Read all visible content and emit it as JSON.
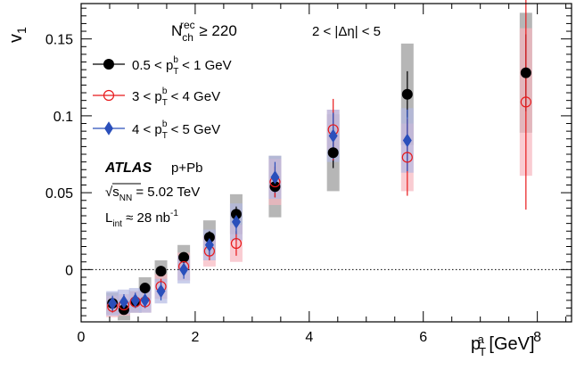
{
  "chart_data": {
    "type": "scatter",
    "xlabel": {
      "base": "p",
      "sub": "T",
      "sup": "a",
      "unit": " [GeV]"
    },
    "ylabel": {
      "base": "v",
      "sub": "1"
    },
    "xlim": [
      0,
      8.6
    ],
    "ylim": [
      -0.034,
      0.173
    ],
    "x_ticks": [
      0,
      2,
      4,
      6,
      8
    ],
    "y_ticks": [
      0,
      0.05,
      0.1,
      0.15
    ],
    "x_tick_labels": [
      "0",
      "2",
      "4",
      "6",
      "8"
    ],
    "y_tick_labels": [
      "0",
      "0.05",
      "0.1",
      "0.15"
    ],
    "reference_line_y": 0,
    "annotations": {
      "nch_base": "N",
      "nch_sub": "ch",
      "nch_sup": "rec",
      "nch_cond": " ≥ 220",
      "deta": "2 < |Δη| < 5",
      "atlas": "ATLAS",
      "system": "p+Pb",
      "energy_pre": "s",
      "energy_sub": "NN",
      "energy_val": " = 5.02 TeV",
      "lumi_base": "L",
      "lumi_sub": "int",
      "lumi_val": " ≈ 28 nb",
      "lumi_sup": "-1"
    },
    "series": [
      {
        "name": "0.5 < p_T^b < 1 GeV",
        "legend_pre": "0.5 < p",
        "legend_sub": "T",
        "legend_sup": "b",
        "legend_post": " < 1 GeV",
        "marker": "circle-filled",
        "color": "#000000",
        "syst_color": "#9e9e9e",
        "points": [
          {
            "x": 0.55,
            "y": -0.022,
            "stat": 0.003,
            "syst": 0.007
          },
          {
            "x": 0.75,
            "y": -0.026,
            "stat": 0.003,
            "syst": 0.007
          },
          {
            "x": 0.95,
            "y": -0.021,
            "stat": 0.003,
            "syst": 0.007
          },
          {
            "x": 1.12,
            "y": -0.012,
            "stat": 0.003,
            "syst": 0.007
          },
          {
            "x": 1.4,
            "y": -0.001,
            "stat": 0.003,
            "syst": 0.007
          },
          {
            "x": 1.8,
            "y": 0.008,
            "stat": 0.003,
            "syst": 0.008
          },
          {
            "x": 2.25,
            "y": 0.021,
            "stat": 0.004,
            "syst": 0.011
          },
          {
            "x": 2.72,
            "y": 0.036,
            "stat": 0.005,
            "syst": 0.013
          },
          {
            "x": 3.4,
            "y": 0.054,
            "stat": 0.007,
            "syst": 0.02
          },
          {
            "x": 4.42,
            "y": 0.076,
            "stat": 0.01,
            "syst": 0.025
          },
          {
            "x": 5.72,
            "y": 0.114,
            "stat": 0.015,
            "syst": 0.033
          },
          {
            "x": 7.8,
            "y": 0.128,
            "stat": 0.025,
            "syst": 0.039
          }
        ]
      },
      {
        "name": "3 < p_T^b < 4 GeV",
        "legend_pre": "3 < p",
        "legend_sub": "T",
        "legend_sup": "b",
        "legend_post": " < 4 GeV",
        "marker": "circle-open",
        "color": "#e8191b",
        "syst_color": "#f7b6bf",
        "points": [
          {
            "x": 0.55,
            "y": -0.024,
            "stat": 0.004,
            "syst": 0.007
          },
          {
            "x": 0.75,
            "y": -0.023,
            "stat": 0.004,
            "syst": 0.007
          },
          {
            "x": 0.95,
            "y": -0.021,
            "stat": 0.004,
            "syst": 0.007
          },
          {
            "x": 1.12,
            "y": -0.021,
            "stat": 0.004,
            "syst": 0.007
          },
          {
            "x": 1.4,
            "y": -0.011,
            "stat": 0.005,
            "syst": 0.008
          },
          {
            "x": 1.8,
            "y": 0.002,
            "stat": 0.005,
            "syst": 0.009
          },
          {
            "x": 2.25,
            "y": 0.012,
            "stat": 0.006,
            "syst": 0.01
          },
          {
            "x": 2.72,
            "y": 0.017,
            "stat": 0.008,
            "syst": 0.012
          },
          {
            "x": 3.4,
            "y": 0.057,
            "stat": 0.01,
            "syst": 0.015
          },
          {
            "x": 4.42,
            "y": 0.091,
            "stat": 0.02,
            "syst": 0.013
          },
          {
            "x": 5.72,
            "y": 0.073,
            "stat": 0.025,
            "syst": 0.022
          },
          {
            "x": 7.8,
            "y": 0.109,
            "stat": 0.07,
            "syst": 0.048
          }
        ]
      },
      {
        "name": "4 < p_T^b < 5 GeV",
        "legend_pre": "4 < p",
        "legend_sub": "T",
        "legend_sup": "b",
        "legend_post": " < 5 GeV",
        "marker": "diamond",
        "color": "#2a4fbb",
        "syst_color": "#b3b9e3",
        "points": [
          {
            "x": 0.55,
            "y": -0.022,
            "stat": 0.005,
            "syst": 0.008
          },
          {
            "x": 0.75,
            "y": -0.021,
            "stat": 0.005,
            "syst": 0.008
          },
          {
            "x": 0.95,
            "y": -0.02,
            "stat": 0.005,
            "syst": 0.008
          },
          {
            "x": 1.12,
            "y": -0.02,
            "stat": 0.005,
            "syst": 0.008
          },
          {
            "x": 1.4,
            "y": -0.014,
            "stat": 0.006,
            "syst": 0.008
          },
          {
            "x": 1.8,
            "y": 0.0,
            "stat": 0.006,
            "syst": 0.009
          },
          {
            "x": 2.25,
            "y": 0.016,
            "stat": 0.007,
            "syst": 0.01
          },
          {
            "x": 2.72,
            "y": 0.031,
            "stat": 0.008,
            "syst": 0.012
          },
          {
            "x": 3.4,
            "y": 0.06,
            "stat": 0.01,
            "syst": 0.014
          },
          {
            "x": 4.42,
            "y": 0.087,
            "stat": 0.015,
            "syst": 0.017
          },
          {
            "x": 5.72,
            "y": 0.084,
            "stat": 0.02,
            "syst": 0.021
          }
        ]
      }
    ]
  }
}
